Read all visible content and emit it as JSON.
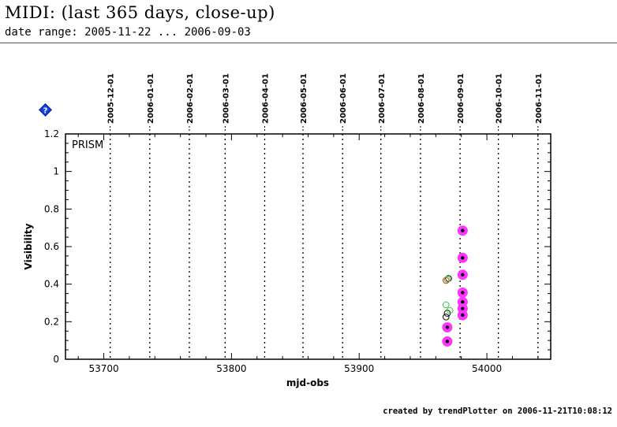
{
  "header": {
    "title": "MIDI: (last 365 days, close-up)",
    "subtitle": "date range: 2005-11-22 ... 2006-09-03"
  },
  "footer": {
    "credit": "created by trendPlotter on 2006-11-21T10:08:12"
  },
  "chart_data": {
    "type": "scatter",
    "xlabel": "mjd-obs",
    "ylabel": "Visibility",
    "panel_label": "PRISM",
    "xlim": [
      53670,
      54050
    ],
    "ylim": [
      0,
      1.2
    ],
    "x_ticks": [
      53700,
      53800,
      53900,
      54000
    ],
    "y_ticks": [
      0,
      0.2,
      0.4,
      0.6,
      0.8,
      1,
      1.2
    ],
    "y_tick_labels": [
      "0",
      "0.2",
      "0.4",
      "0.6",
      "0.8",
      "1",
      "1.2"
    ],
    "grid": false,
    "date_markers": [
      {
        "label": "2005-12-01",
        "mjd": 53705
      },
      {
        "label": "2006-01-01",
        "mjd": 53736
      },
      {
        "label": "2006-02-01",
        "mjd": 53767
      },
      {
        "label": "2006-03-01",
        "mjd": 53795
      },
      {
        "label": "2006-04-01",
        "mjd": 53826
      },
      {
        "label": "2006-05-01",
        "mjd": 53856
      },
      {
        "label": "2006-06-01",
        "mjd": 53887
      },
      {
        "label": "2006-07-01",
        "mjd": 53917
      },
      {
        "label": "2006-08-01",
        "mjd": 53948
      },
      {
        "label": "2006-09-01",
        "mjd": 53979
      },
      {
        "label": "2006-10-01",
        "mjd": 54009
      },
      {
        "label": "2006-11-01",
        "mjd": 54040
      }
    ],
    "series": [
      {
        "marker": "magenta-filled-with-black-dot",
        "color": "#ff33ff",
        "points": [
          {
            "x": 53981,
            "y": 0.685
          },
          {
            "x": 53981,
            "y": 0.54
          },
          {
            "x": 53981,
            "y": 0.45
          },
          {
            "x": 53981,
            "y": 0.355
          },
          {
            "x": 53981,
            "y": 0.305
          },
          {
            "x": 53981,
            "y": 0.27
          },
          {
            "x": 53981,
            "y": 0.235
          },
          {
            "x": 53969,
            "y": 0.17
          },
          {
            "x": 53969,
            "y": 0.095
          }
        ]
      },
      {
        "marker": "open-circle",
        "color": "#000000",
        "points": [
          {
            "x": 53970,
            "y": 0.43
          },
          {
            "x": 53969,
            "y": 0.245
          },
          {
            "x": 53968,
            "y": 0.225
          }
        ]
      },
      {
        "marker": "open-circle",
        "color": "#ff3300",
        "points": [
          {
            "x": 53968,
            "y": 0.42
          }
        ]
      },
      {
        "marker": "open-circle",
        "color": "#33cc33",
        "points": [
          {
            "x": 53969,
            "y": 0.425
          },
          {
            "x": 53968,
            "y": 0.29
          },
          {
            "x": 53971,
            "y": 0.26
          }
        ]
      }
    ]
  }
}
